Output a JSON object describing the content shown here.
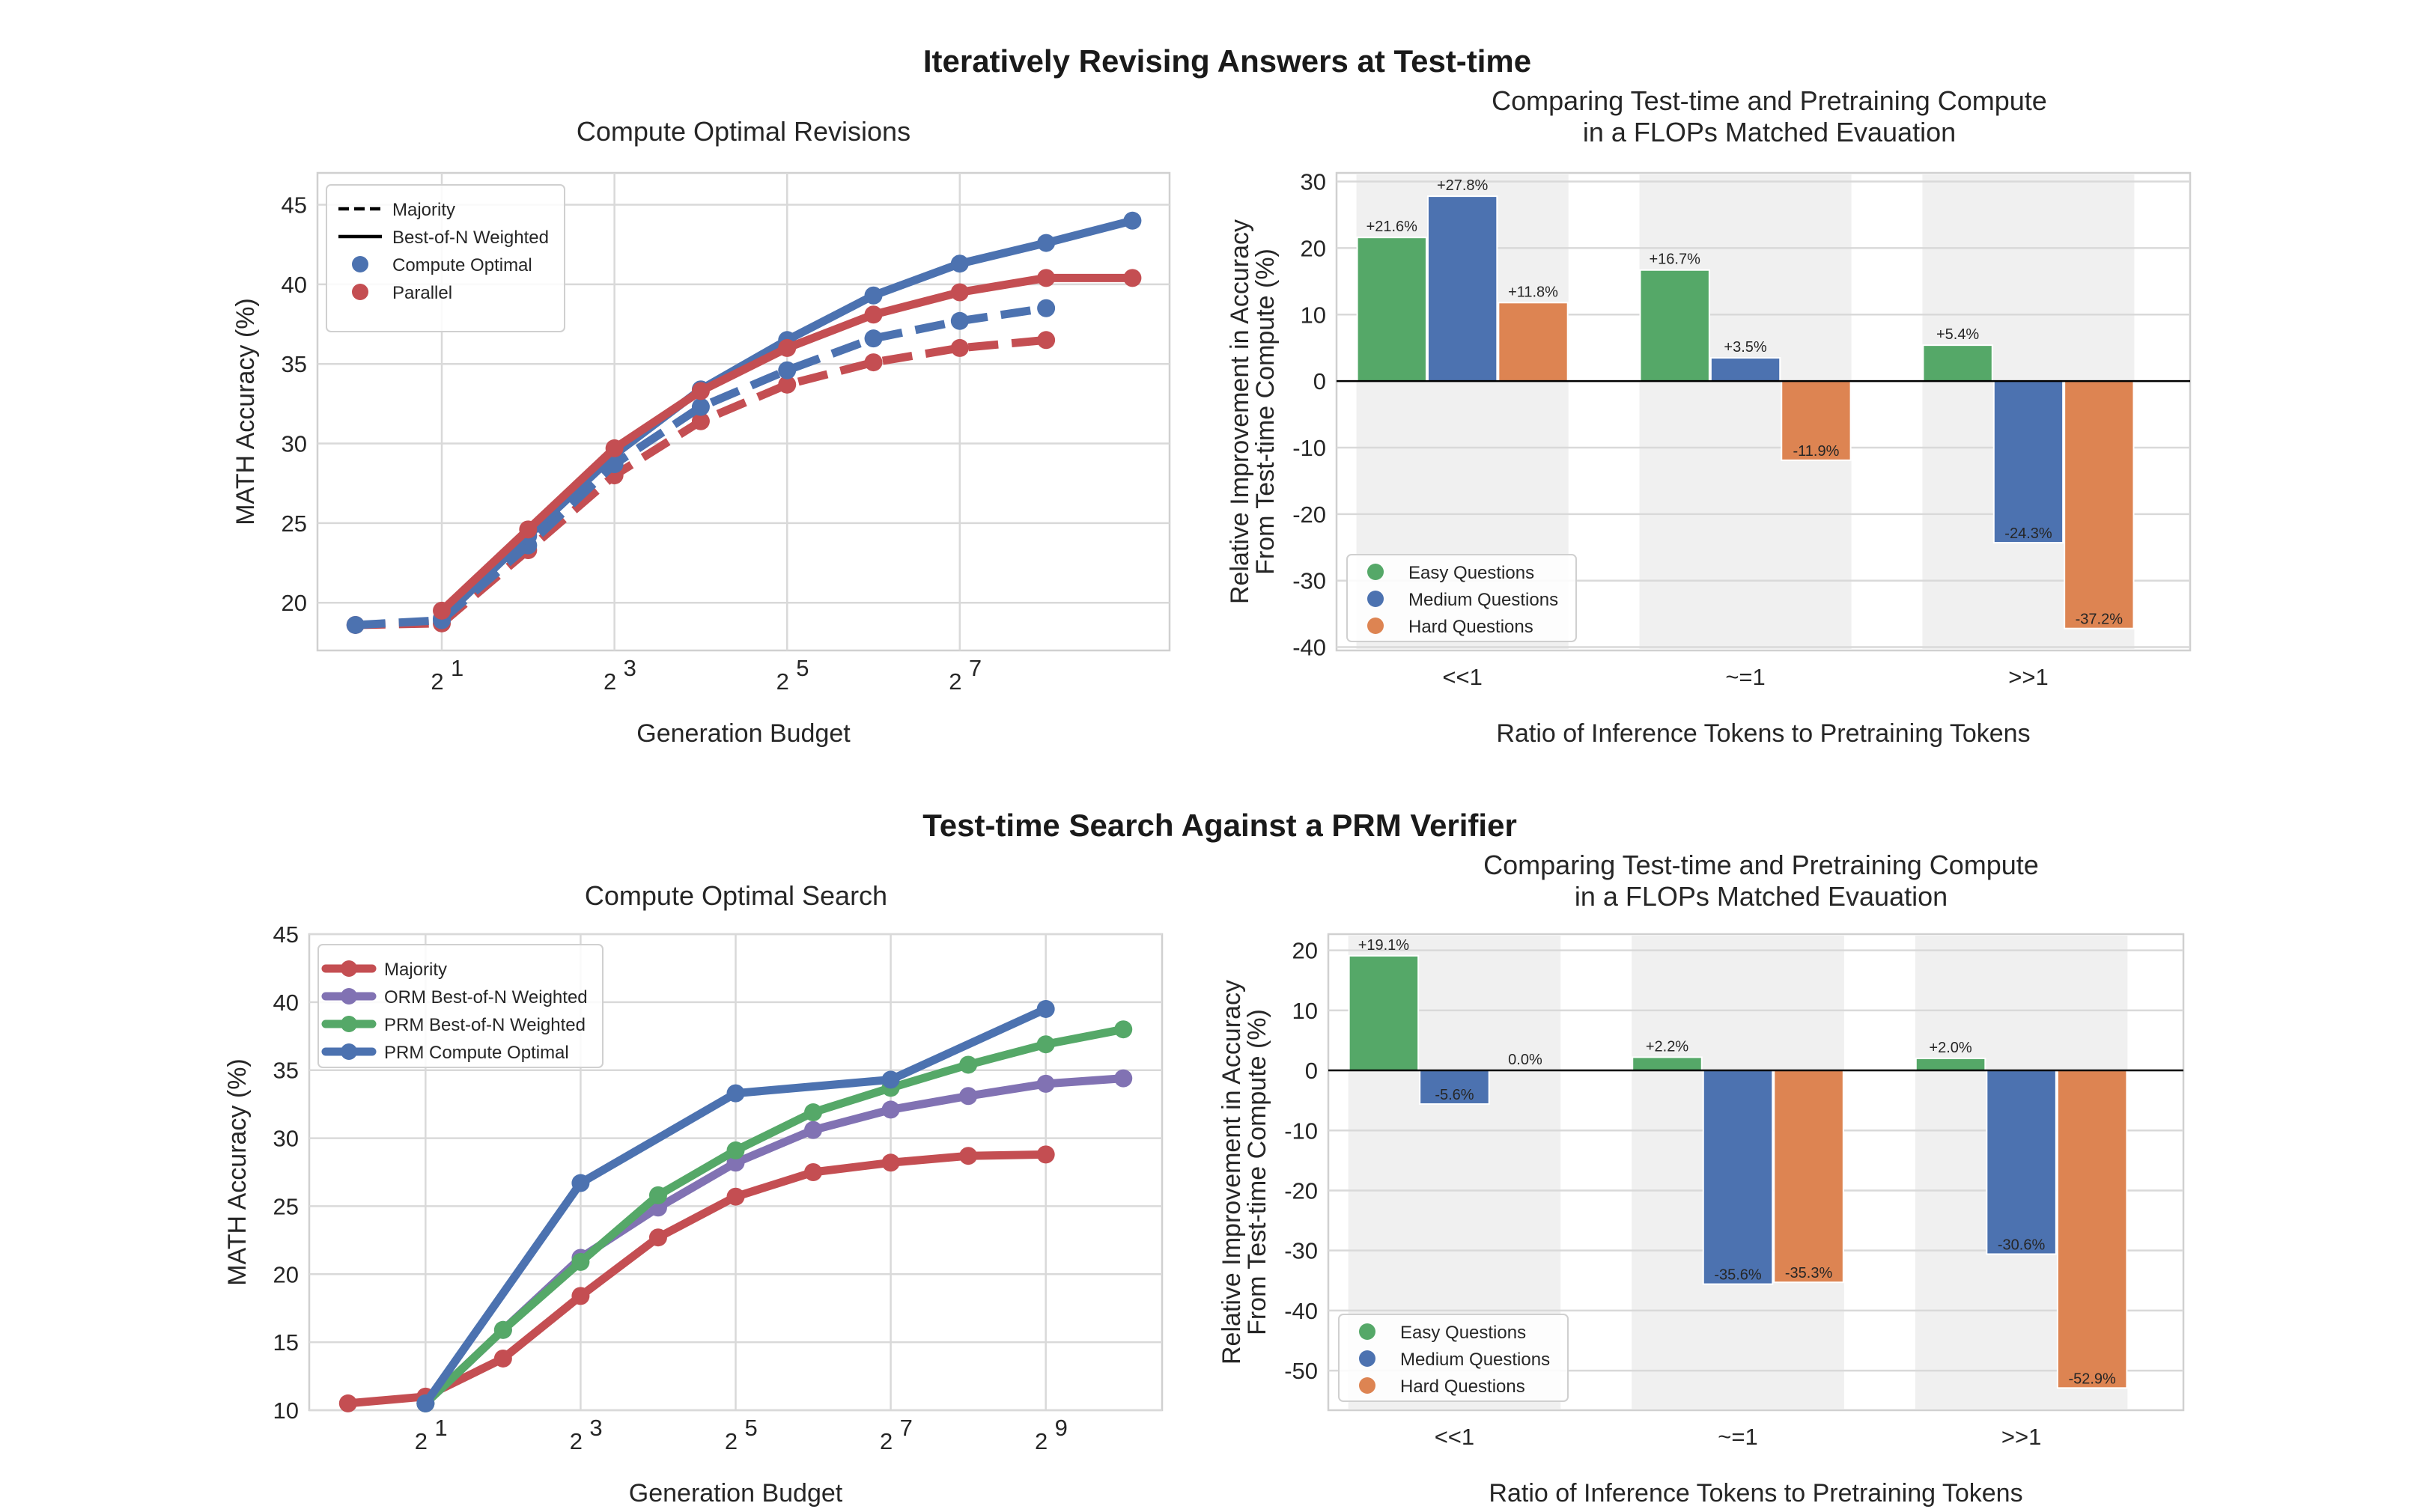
{
  "figure": {
    "sections": [
      {
        "title": "Iteratively Revising Answers at Test-time"
      },
      {
        "title": "Test-time Search Against a PRM Verifier"
      }
    ]
  },
  "colors": {
    "blue": "#4c72b0",
    "red": "#c44e52",
    "green": "#55a868",
    "purple": "#8172b3",
    "orange": "#dd8452",
    "grid": "#d9d9d9",
    "band": "#f0f0f0"
  },
  "chart_data": [
    {
      "id": "revisions",
      "type": "line",
      "title": "Compute Optimal Revisions",
      "xlabel": "Generation Budget",
      "ylabel": "MATH Accuracy (%)",
      "x_scale": "log2",
      "x": [
        1,
        2,
        4,
        8,
        16,
        32,
        64,
        128,
        256,
        512
      ],
      "xticks": [
        {
          "exp": "1"
        },
        {
          "exp": "3"
        },
        {
          "exp": "5"
        },
        {
          "exp": "7"
        }
      ],
      "xtick_base": "2",
      "xlim_log2": [
        -0.44,
        9.43
      ],
      "ylim": [
        17,
        47
      ],
      "yticks": [
        20,
        25,
        30,
        35,
        40,
        45
      ],
      "legend": [
        {
          "label": "Majority",
          "kind": "dashed-line"
        },
        {
          "label": "Best-of-N Weighted",
          "kind": "solid-line"
        },
        {
          "label": "Compute Optimal",
          "kind": "marker",
          "color": "blue"
        },
        {
          "label": "Parallel",
          "kind": "marker",
          "color": "red"
        }
      ],
      "legend_position": "upper-left",
      "grid": true,
      "series": [
        {
          "name": "Parallel Majority",
          "color": "red",
          "style": "dashed",
          "x": [
            1,
            2,
            4,
            8,
            16,
            32,
            64,
            128,
            256
          ],
          "values": [
            18.6,
            18.7,
            23.3,
            28.0,
            31.4,
            33.7,
            35.1,
            36.0,
            36.5
          ]
        },
        {
          "name": "Compute Optimal Majority",
          "color": "blue",
          "style": "dashed",
          "x": [
            1,
            2,
            4,
            8,
            16,
            32,
            64,
            128,
            256
          ],
          "values": [
            18.6,
            18.9,
            23.6,
            28.7,
            32.3,
            34.6,
            36.6,
            37.7,
            38.5
          ]
        },
        {
          "name": "Compute Optimal Best-of-N Weighted",
          "color": "blue",
          "style": "solid",
          "x": [
            2,
            4,
            8,
            16,
            32,
            64,
            128,
            256,
            512
          ],
          "values": [
            19.0,
            24.2,
            29.3,
            33.4,
            36.5,
            39.3,
            41.3,
            42.6,
            44.0
          ]
        },
        {
          "name": "Parallel Best-of-N Weighted",
          "color": "red",
          "style": "solid",
          "x": [
            2,
            4,
            8,
            16,
            32,
            64,
            128,
            256,
            512
          ],
          "values": [
            19.5,
            24.6,
            29.7,
            33.3,
            36.0,
            38.1,
            39.5,
            40.4,
            40.4
          ]
        }
      ]
    },
    {
      "id": "revisions-flops",
      "type": "bar",
      "title": "Comparing Test-time and Pretraining Compute",
      "title_line2": "in a FLOPs Matched Evauation",
      "xlabel": "Ratio of Inference Tokens to Pretraining Tokens",
      "ylabel": "Relative Improvement in Accuracy",
      "ylabel_line2": "From Test-time Compute (%)",
      "categories": [
        "<<1",
        "~=1",
        ">>1"
      ],
      "ylim": [
        -40.5,
        31.3
      ],
      "yticks": [
        -40,
        -30,
        -20,
        -10,
        0,
        10,
        20,
        30
      ],
      "legend_position": "lower-left",
      "grid": true,
      "series": [
        {
          "name": "Easy Questions",
          "color": "green",
          "values": [
            21.6,
            16.7,
            5.4
          ],
          "labels": [
            "+21.6%",
            "+16.7%",
            "+5.4%"
          ]
        },
        {
          "name": "Medium Questions",
          "color": "blue",
          "values": [
            27.8,
            3.5,
            -24.3
          ],
          "labels": [
            "+27.8%",
            "+3.5%",
            "-24.3%"
          ]
        },
        {
          "name": "Hard Questions",
          "color": "orange",
          "values": [
            11.8,
            -11.9,
            -37.2
          ],
          "labels": [
            "+11.8%",
            "-11.9%",
            "-37.2%"
          ]
        }
      ]
    },
    {
      "id": "search",
      "type": "line",
      "title": "Compute Optimal Search",
      "xlabel": "Generation Budget",
      "ylabel": "MATH Accuracy (%)",
      "x_scale": "log2",
      "xticks": [
        {
          "exp": "1"
        },
        {
          "exp": "3"
        },
        {
          "exp": "5"
        },
        {
          "exp": "7"
        },
        {
          "exp": "9"
        }
      ],
      "xtick_base": "2",
      "xlim_log2": [
        -0.5,
        10.5
      ],
      "ylim": [
        10,
        45
      ],
      "yticks": [
        10,
        15,
        20,
        25,
        30,
        35,
        40,
        45
      ],
      "legend_position": "upper-left",
      "grid": true,
      "series": [
        {
          "name": "Majority",
          "color": "red",
          "x": [
            1,
            2,
            4,
            8,
            16,
            32,
            64,
            128,
            256,
            512
          ],
          "values": [
            10.5,
            11.0,
            13.8,
            18.4,
            22.7,
            25.7,
            27.5,
            28.2,
            28.7,
            28.8
          ]
        },
        {
          "name": "ORM Best-of-N Weighted",
          "color": "purple",
          "x": [
            2,
            4,
            8,
            16,
            32,
            64,
            128,
            256,
            512,
            1024
          ],
          "values": [
            10.5,
            15.9,
            21.2,
            24.9,
            28.2,
            30.6,
            32.1,
            33.1,
            34.0,
            34.4
          ]
        },
        {
          "name": "PRM Best-of-N Weighted",
          "color": "green",
          "x": [
            2,
            4,
            8,
            16,
            32,
            64,
            128,
            256,
            512,
            1024
          ],
          "values": [
            10.5,
            15.9,
            20.9,
            25.8,
            29.1,
            31.9,
            33.7,
            35.4,
            36.9,
            38.0
          ]
        },
        {
          "name": "PRM Compute Optimal",
          "color": "blue",
          "x": [
            2,
            8,
            32,
            128,
            512
          ],
          "values": [
            10.5,
            26.7,
            33.3,
            34.3,
            39.5
          ]
        }
      ]
    },
    {
      "id": "search-flops",
      "type": "bar",
      "title": "Comparing Test-time and Pretraining Compute",
      "title_line2": "in a FLOPs Matched Evauation",
      "xlabel": "Ratio of Inference Tokens to Pretraining Tokens",
      "ylabel": "Relative Improvement in Accuracy",
      "ylabel_line2": "From Test-time Compute (%)",
      "categories": [
        "<<1",
        "~=1",
        ">>1"
      ],
      "ylim": [
        -56.6,
        22.7
      ],
      "yticks": [
        -50,
        -40,
        -30,
        -20,
        -10,
        0,
        10,
        20
      ],
      "legend_position": "lower-left",
      "grid": true,
      "series": [
        {
          "name": "Easy Questions",
          "color": "green",
          "values": [
            19.1,
            2.2,
            2.0
          ],
          "labels": [
            "+19.1%",
            "+2.2%",
            "+2.0%"
          ]
        },
        {
          "name": "Medium Questions",
          "color": "blue",
          "values": [
            -5.6,
            -35.6,
            -30.6
          ],
          "labels": [
            "-5.6%",
            "-35.6%",
            "-30.6%"
          ]
        },
        {
          "name": "Hard Questions",
          "color": "orange",
          "values": [
            0.0,
            -35.3,
            -52.9
          ],
          "labels": [
            "0.0%",
            "-35.3%",
            "-52.9%"
          ]
        }
      ]
    }
  ]
}
